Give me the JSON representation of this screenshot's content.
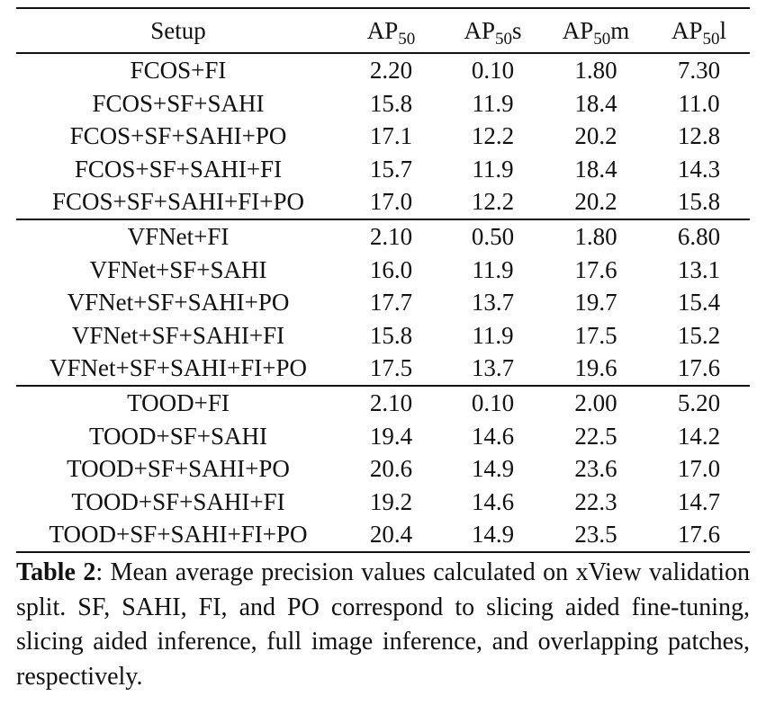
{
  "table": {
    "header": {
      "setup": "Setup",
      "metrics": [
        {
          "base": "AP",
          "sub": "50",
          "suffix": ""
        },
        {
          "base": "AP",
          "sub": "50",
          "suffix": "s"
        },
        {
          "base": "AP",
          "sub": "50",
          "suffix": "m"
        },
        {
          "base": "AP",
          "sub": "50",
          "suffix": "l"
        }
      ]
    },
    "groups": [
      {
        "rows": [
          {
            "setup": "FCOS+FI",
            "values": [
              "2.20",
              "0.10",
              "1.80",
              "7.30"
            ],
            "bold": [
              false,
              false,
              false,
              false
            ]
          },
          {
            "setup": "FCOS+SF+SAHI",
            "values": [
              "15.8",
              "11.9",
              "18.4",
              "11.0"
            ],
            "bold": [
              false,
              false,
              false,
              false
            ]
          },
          {
            "setup": "FCOS+SF+SAHI+PO",
            "values": [
              "17.1",
              "12.2",
              "20.2",
              "12.8"
            ],
            "bold": [
              true,
              true,
              true,
              false
            ]
          },
          {
            "setup": "FCOS+SF+SAHI+FI",
            "values": [
              "15.7",
              "11.9",
              "18.4",
              "14.3"
            ],
            "bold": [
              false,
              false,
              false,
              false
            ]
          },
          {
            "setup": "FCOS+SF+SAHI+FI+PO",
            "values": [
              "17.0",
              "12.2",
              "20.2",
              "15.8"
            ],
            "bold": [
              true,
              true,
              true,
              true
            ]
          }
        ]
      },
      {
        "rows": [
          {
            "setup": "VFNet+FI",
            "values": [
              "2.10",
              "0.50",
              "1.80",
              "6.80"
            ],
            "bold": [
              false,
              false,
              false,
              false
            ]
          },
          {
            "setup": "VFNet+SF+SAHI",
            "values": [
              "16.0",
              "11.9",
              "17.6",
              "13.1"
            ],
            "bold": [
              false,
              false,
              false,
              false
            ]
          },
          {
            "setup": "VFNet+SF+SAHI+PO",
            "values": [
              "17.7",
              "13.7",
              "19.7",
              "15.4"
            ],
            "bold": [
              true,
              true,
              true,
              false
            ]
          },
          {
            "setup": "VFNet+SF+SAHI+FI",
            "values": [
              "15.8",
              "11.9",
              "17.5",
              "15.2"
            ],
            "bold": [
              false,
              false,
              false,
              false
            ]
          },
          {
            "setup": "VFNet+SF+SAHI+FI+PO",
            "values": [
              "17.5",
              "13.7",
              "19.6",
              "17.6"
            ],
            "bold": [
              true,
              true,
              true,
              true
            ]
          }
        ]
      },
      {
        "rows": [
          {
            "setup": "TOOD+FI",
            "values": [
              "2.10",
              "0.10",
              "2.00",
              "5.20"
            ],
            "bold": [
              false,
              false,
              false,
              false
            ]
          },
          {
            "setup": "TOOD+SF+SAHI",
            "values": [
              "19.4",
              "14.6",
              "22.5",
              "14.2"
            ],
            "bold": [
              false,
              false,
              false,
              false
            ]
          },
          {
            "setup": "TOOD+SF+SAHI+PO",
            "values": [
              "20.6",
              "14.9",
              "23.6",
              "17.0"
            ],
            "bold": [
              true,
              true,
              true,
              false
            ]
          },
          {
            "setup": "TOOD+SF+SAHI+FI",
            "values": [
              "19.2",
              "14.6",
              "22.3",
              "14.7"
            ],
            "bold": [
              false,
              false,
              false,
              false
            ]
          },
          {
            "setup": "TOOD+SF+SAHI+FI+PO",
            "values": [
              "20.4",
              "14.9",
              "23.5",
              "17.6"
            ],
            "bold": [
              true,
              true,
              true,
              true
            ]
          }
        ]
      }
    ]
  },
  "caption": {
    "label": "Table 2",
    "text": ": Mean average precision values calculated on xView validation split. SF, SAHI, FI, and PO correspond to slicing aided fine-tuning, slicing aided inference, full image inference, and overlapping patches, respectively."
  }
}
